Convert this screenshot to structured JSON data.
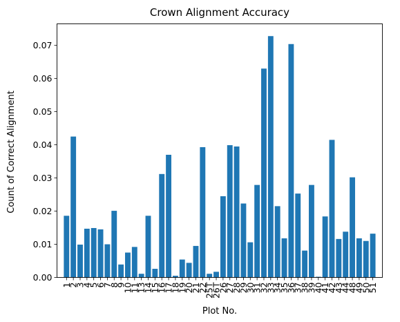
{
  "chart_data": {
    "type": "bar",
    "title": "Crown Alignment Accuracy",
    "xlabel": "Plot No.",
    "ylabel": "Count of Correct Alignment",
    "ylim": [
      0,
      0.0765
    ],
    "yticks": [
      "0.00",
      "0.01",
      "0.02",
      "0.03",
      "0.04",
      "0.05",
      "0.06",
      "0.07"
    ],
    "ytick_values": [
      0,
      0.01,
      0.02,
      0.03,
      0.04,
      0.05,
      0.06,
      0.07
    ],
    "bar_color": "#1f77b4",
    "grid": false,
    "categories": [
      "1",
      "2",
      "3",
      "4",
      "5",
      "6",
      "7",
      "8",
      "9",
      "10",
      "11",
      "13",
      "14",
      "15",
      "16",
      "17",
      "18",
      "19",
      "20",
      "21",
      "22",
      "25T",
      "26T",
      "26",
      "27",
      "28",
      "29",
      "30",
      "31",
      "32",
      "33",
      "34",
      "35",
      "36",
      "37",
      "38",
      "39",
      "40",
      "41",
      "42",
      "43",
      "44",
      "48",
      "49",
      "50",
      "51"
    ],
    "values": [
      0.0186,
      0.0425,
      0.0099,
      0.0147,
      0.0149,
      0.0145,
      0.01,
      0.0201,
      0.0039,
      0.0075,
      0.0092,
      0.0011,
      0.0186,
      0.0026,
      0.0312,
      0.037,
      0.0005,
      0.0054,
      0.0044,
      0.0095,
      0.0393,
      0.0011,
      0.0017,
      0.0245,
      0.0399,
      0.0395,
      0.0223,
      0.0106,
      0.0279,
      0.063,
      0.0728,
      0.0215,
      0.0118,
      0.0704,
      0.0253,
      0.0081,
      0.0279,
      0.0002,
      0.0184,
      0.0415,
      0.0116,
      0.0138,
      0.0302,
      0.0118,
      0.011,
      0.0132
    ]
  }
}
